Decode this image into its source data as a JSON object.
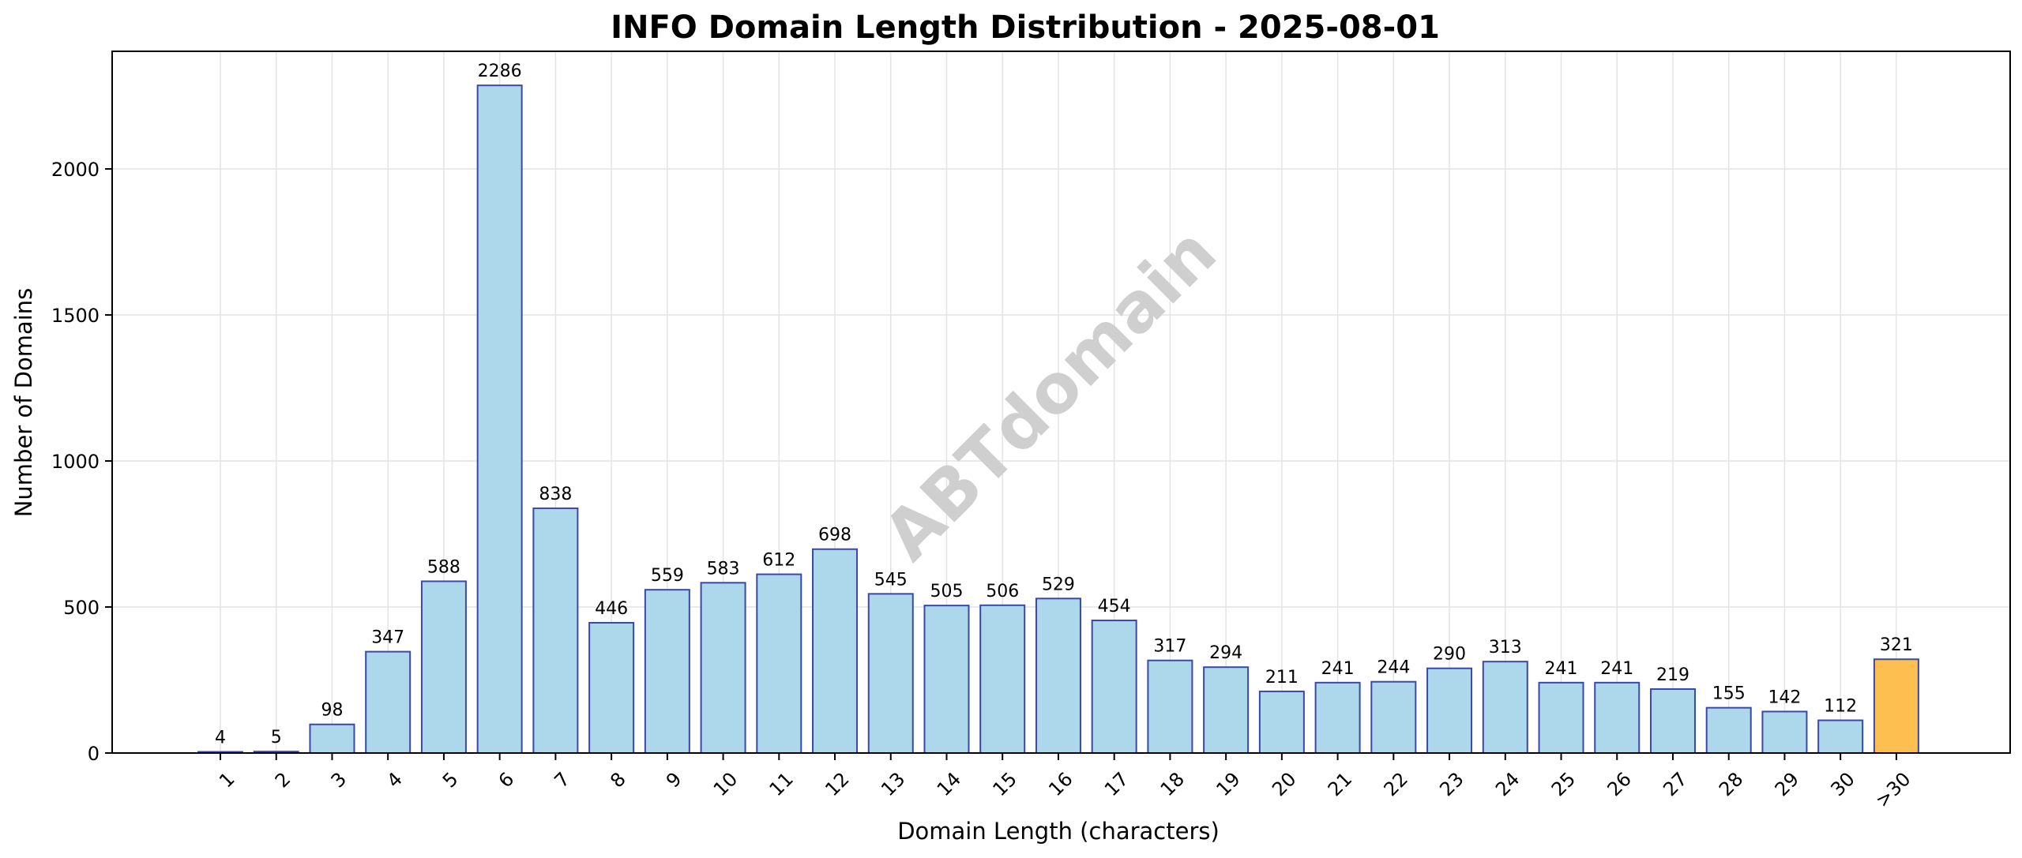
{
  "chart_data": {
    "type": "bar",
    "title": "INFO Domain Length Distribution - 2025-08-01",
    "xlabel": "Domain Length (characters)",
    "ylabel": "Number of Domains",
    "categories": [
      "1",
      "2",
      "3",
      "4",
      "5",
      "6",
      "7",
      "8",
      "9",
      "10",
      "11",
      "12",
      "13",
      "14",
      "15",
      "16",
      "17",
      "18",
      "19",
      "20",
      "21",
      "22",
      "23",
      "24",
      "25",
      "26",
      "27",
      "28",
      "29",
      "30",
      ">30"
    ],
    "values": [
      4,
      5,
      98,
      347,
      588,
      2286,
      838,
      446,
      559,
      583,
      612,
      698,
      545,
      505,
      506,
      529,
      454,
      317,
      294,
      211,
      241,
      244,
      290,
      313,
      241,
      241,
      219,
      155,
      142,
      112,
      321
    ],
    "yticks": [
      0,
      500,
      1000,
      1500,
      2000
    ],
    "ylim": [
      0,
      2400
    ],
    "grid": true,
    "colors": {
      "bar_fill": "#add8ec",
      "bar_edge": "#3a48a8",
      "highlight_fill": "#fdbf4f",
      "highlight_category": ">30"
    },
    "watermark": "ABTdomain"
  }
}
